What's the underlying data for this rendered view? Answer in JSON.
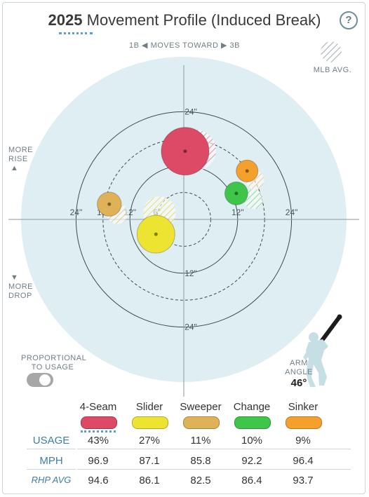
{
  "header": {
    "year": "2025",
    "title": "Movement Profile (Induced Break)",
    "help_label": "?"
  },
  "direction": {
    "left": "1B",
    "middle": "MOVES TOWARD",
    "right": "3B"
  },
  "legend": {
    "mlb_avg": "MLB AVG."
  },
  "rise_label": [
    "MORE",
    "RISE"
  ],
  "drop_label": [
    "MORE",
    "DROP"
  ],
  "toggle": {
    "label": [
      "PROPORTIONAL",
      "TO USAGE"
    ],
    "on": false
  },
  "arm_angle": {
    "label": [
      "ARM",
      "ANGLE"
    ],
    "value": "46°",
    "degrees": 46
  },
  "chart_data": {
    "type": "scatter",
    "title": "Movement Profile (Induced Break)",
    "x_range": [
      -30,
      30
    ],
    "y_range": [
      -30,
      30
    ],
    "rings": [
      6,
      12,
      18,
      24
    ],
    "ring_labels": [
      {
        "text": "24\"",
        "pos": "top"
      },
      {
        "text": "12\"",
        "pos": "top"
      },
      {
        "text": "24\"",
        "pos": "left"
      },
      {
        "text": "18\"",
        "pos": "left"
      },
      {
        "text": "12\"",
        "pos": "left"
      },
      {
        "text": "6\"",
        "pos": "left"
      },
      {
        "text": "12\"",
        "pos": "right"
      },
      {
        "text": "24\"",
        "pos": "right"
      },
      {
        "text": "12\"",
        "pos": "bottom"
      },
      {
        "text": "24\"",
        "pos": "bottom"
      }
    ],
    "series": [
      {
        "pitch": "4-Seam",
        "color": "#dd4a65",
        "usage": 43,
        "x": 0.3,
        "y": 15.2,
        "mlb_x": 2.6,
        "mlb_y": 15.4
      },
      {
        "pitch": "Slider",
        "color": "#ece431",
        "usage": 27,
        "x": -6.2,
        "y": -3.3,
        "mlb_x": -5.4,
        "mlb_y": 1.5
      },
      {
        "pitch": "Sweeper",
        "color": "#dfb258",
        "usage": 11,
        "x": -16.6,
        "y": 3.4,
        "mlb_x": -14.8,
        "mlb_y": 1.3
      },
      {
        "pitch": "Change",
        "color": "#3fc64a",
        "usage": 10,
        "x": 11.7,
        "y": 5.8,
        "mlb_x": 15.5,
        "mlb_y": 4.5
      },
      {
        "pitch": "Sinker",
        "color": "#f3a02c",
        "usage": 9,
        "x": 14.1,
        "y": 10.8,
        "mlb_x": 15.8,
        "mlb_y": 8.8
      }
    ]
  },
  "table": {
    "pitches": [
      "4-Seam",
      "Slider",
      "Sweeper",
      "Change",
      "Sinker"
    ],
    "colors": [
      "#dd4a65",
      "#ece431",
      "#dfb258",
      "#3fc64a",
      "#f3a02c"
    ],
    "usage_label": "USAGE",
    "mph_label": "MPH",
    "rhp_label": "RHP AVG",
    "usage": [
      "43%",
      "27%",
      "11%",
      "10%",
      "9%"
    ],
    "mph": [
      "96.9",
      "87.1",
      "85.8",
      "92.2",
      "96.4"
    ],
    "rhp_avg": [
      "94.6",
      "86.1",
      "82.5",
      "86.4",
      "93.7"
    ]
  }
}
